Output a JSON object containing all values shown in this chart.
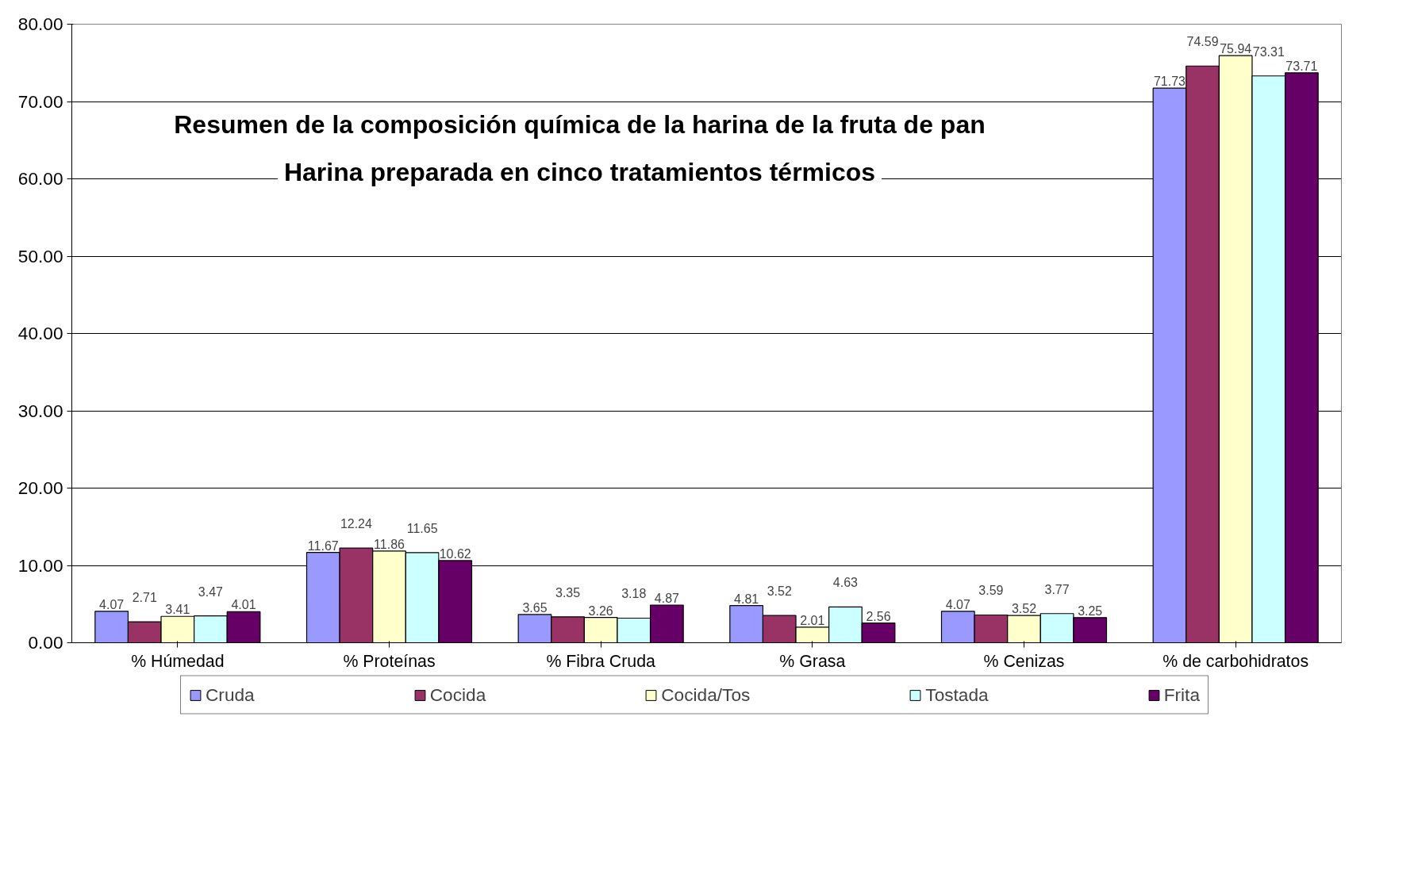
{
  "chart_data": {
    "type": "bar",
    "title": "Resumen de la composición química de la harina de la fruta de pan",
    "subtitle": "Harina preparada en cinco tratamientos térmicos",
    "categories": [
      "% Húmedad",
      "% Proteínas",
      "% Fibra Cruda",
      "% Grasa",
      "% Cenizas",
      "% de carbohidratos"
    ],
    "series": [
      {
        "name": "Cruda",
        "color": "#9999ff",
        "values": [
          4.07,
          11.67,
          3.65,
          4.81,
          4.07,
          71.73
        ]
      },
      {
        "name": "Cocida",
        "color": "#993366",
        "values": [
          2.71,
          12.24,
          3.35,
          3.52,
          3.59,
          74.59
        ]
      },
      {
        "name": "Cocida/Tos",
        "color": "#ffffcc",
        "values": [
          3.41,
          11.86,
          3.26,
          2.01,
          3.52,
          75.94
        ]
      },
      {
        "name": "Tostada",
        "color": "#ccffff",
        "values": [
          3.47,
          11.65,
          3.18,
          4.63,
          3.77,
          73.31
        ]
      },
      {
        "name": "Frita",
        "color": "#660066",
        "values": [
          4.01,
          10.62,
          4.87,
          2.56,
          3.25,
          73.71
        ]
      }
    ],
    "ylim": [
      0,
      80
    ],
    "yticks": [
      {
        "value": 0,
        "label": "0.00"
      },
      {
        "value": 10,
        "label": "10.00"
      },
      {
        "value": 20,
        "label": "20.00"
      },
      {
        "value": 30,
        "label": "30.00"
      },
      {
        "value": 40,
        "label": "40.00"
      },
      {
        "value": 50,
        "label": "50.00"
      },
      {
        "value": 60,
        "label": "60.00"
      },
      {
        "value": 70,
        "label": "70.00"
      },
      {
        "value": 80,
        "label": "80.00"
      }
    ],
    "grid": "y",
    "legend": "bottom",
    "data_labels": true
  }
}
